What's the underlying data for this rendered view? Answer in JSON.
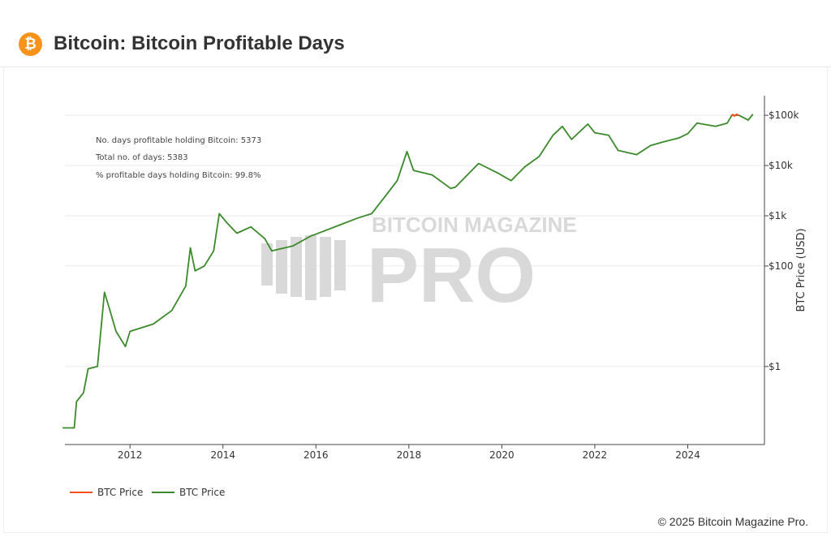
{
  "header": {
    "title": "Bitcoin: Bitcoin Profitable Days",
    "logo_icon": "bitcoin-icon"
  },
  "footer": {
    "copyright": "© 2025 Bitcoin Magazine Pro."
  },
  "watermark": {
    "line1": "BITCOIN MAGAZINE",
    "line2": "PRO"
  },
  "chart_data": {
    "type": "line",
    "title": "Bitcoin: Bitcoin Profitable Days",
    "xlabel": "",
    "ylabel": "BTC Price (USD)",
    "yscale": "log",
    "ylim": [
      0.028,
      245000
    ],
    "xlim": [
      2010.6,
      2025.65
    ],
    "xticks": [
      "2012",
      "2014",
      "2016",
      "2018",
      "2020",
      "2022",
      "2024"
    ],
    "yticks": [
      {
        "value": 1,
        "label": "$1"
      },
      {
        "value": 100,
        "label": "$100"
      },
      {
        "value": 1000,
        "label": "$1k"
      },
      {
        "value": 10000,
        "label": "$10k"
      },
      {
        "value": 100000,
        "label": "$100k"
      }
    ],
    "grid": true,
    "legend_position": "bottom-left",
    "annotations": [
      "No. days profitable holding Bitcoin: 5373",
      "Total no. of days: 5383",
      "% profitable days holding Bitcoin: 99.8%"
    ],
    "series": [
      {
        "name": "BTC Price",
        "color": "#f4511e",
        "points": [
          [
            2024.93,
            98000
          ],
          [
            2024.97,
            104000
          ],
          [
            2025.0,
            96000
          ],
          [
            2025.05,
            105000
          ],
          [
            2025.1,
            99000
          ]
        ]
      },
      {
        "name": "BTC Price",
        "color": "#3a8a2a",
        "points": [
          [
            2010.55,
            0.06
          ],
          [
            2010.8,
            0.06
          ],
          [
            2010.85,
            0.2
          ],
          [
            2011.0,
            0.3
          ],
          [
            2011.1,
            0.9
          ],
          [
            2011.3,
            1
          ],
          [
            2011.45,
            30
          ],
          [
            2011.55,
            15
          ],
          [
            2011.7,
            5
          ],
          [
            2011.9,
            2.5
          ],
          [
            2012.0,
            5
          ],
          [
            2012.5,
            7
          ],
          [
            2012.9,
            13
          ],
          [
            2013.2,
            40
          ],
          [
            2013.3,
            230
          ],
          [
            2013.4,
            80
          ],
          [
            2013.6,
            100
          ],
          [
            2013.8,
            200
          ],
          [
            2013.92,
            1100
          ],
          [
            2014.1,
            700
          ],
          [
            2014.3,
            450
          ],
          [
            2014.6,
            600
          ],
          [
            2014.9,
            350
          ],
          [
            2015.05,
            200
          ],
          [
            2015.5,
            250
          ],
          [
            2015.9,
            400
          ],
          [
            2016.0,
            430
          ],
          [
            2016.5,
            650
          ],
          [
            2016.9,
            900
          ],
          [
            2017.2,
            1100
          ],
          [
            2017.5,
            2500
          ],
          [
            2017.75,
            5000
          ],
          [
            2017.96,
            19000
          ],
          [
            2018.1,
            8000
          ],
          [
            2018.5,
            6500
          ],
          [
            2018.9,
            3500
          ],
          [
            2019.0,
            3700
          ],
          [
            2019.5,
            11000
          ],
          [
            2019.9,
            7200
          ],
          [
            2020.2,
            5000
          ],
          [
            2020.5,
            9500
          ],
          [
            2020.8,
            15000
          ],
          [
            2021.1,
            40000
          ],
          [
            2021.3,
            60000
          ],
          [
            2021.5,
            33000
          ],
          [
            2021.85,
            67000
          ],
          [
            2022.0,
            45000
          ],
          [
            2022.3,
            40000
          ],
          [
            2022.5,
            20000
          ],
          [
            2022.9,
            16500
          ],
          [
            2023.2,
            25000
          ],
          [
            2023.5,
            30000
          ],
          [
            2023.8,
            35000
          ],
          [
            2024.0,
            43000
          ],
          [
            2024.2,
            70000
          ],
          [
            2024.6,
            60000
          ],
          [
            2024.85,
            70000
          ],
          [
            2024.95,
            100000
          ],
          [
            2025.1,
            100000
          ],
          [
            2025.3,
            80000
          ],
          [
            2025.4,
            105000
          ]
        ]
      }
    ]
  }
}
